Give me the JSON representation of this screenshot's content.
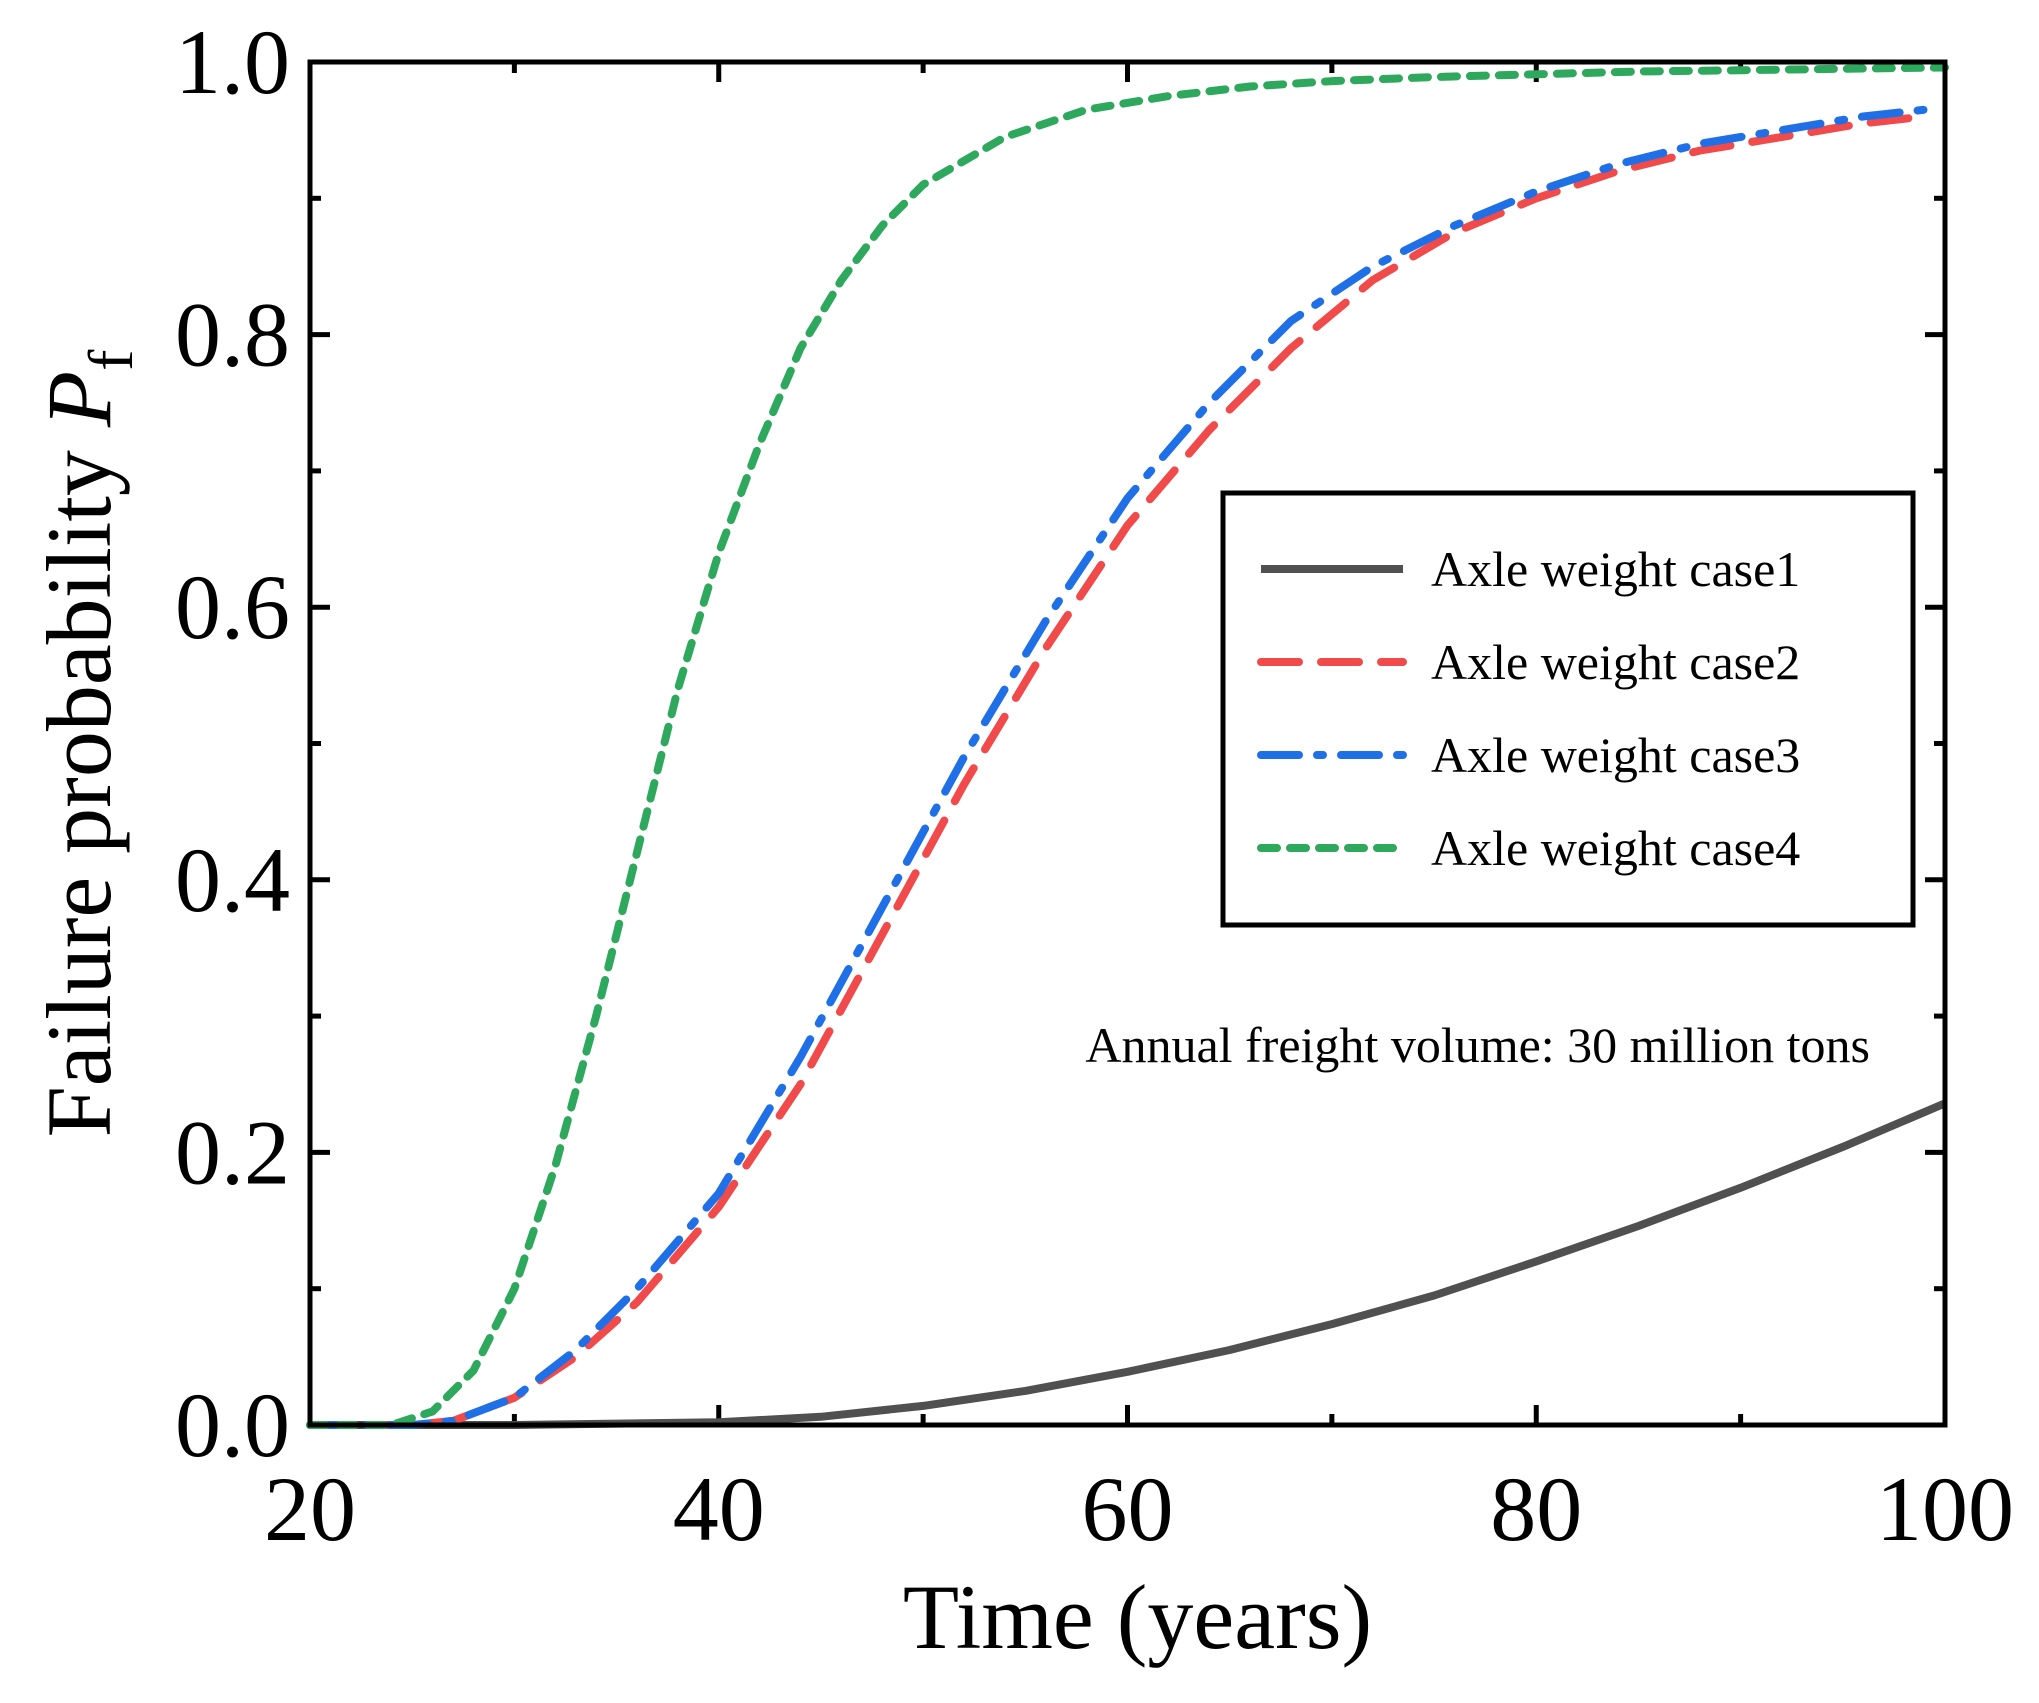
{
  "chart_data": {
    "type": "line",
    "title": "",
    "xlabel": "Time  (years)",
    "ylabel": "Failure probability ",
    "ylabel_symbol": "P",
    "ylabel_subscript": "f",
    "xlim": [
      20,
      100
    ],
    "ylim": [
      0,
      1.0
    ],
    "xticks": [
      20,
      40,
      60,
      80,
      100
    ],
    "xtick_labels": [
      "20",
      "40",
      "60",
      "80",
      "100"
    ],
    "yticks": [
      0,
      0.2,
      0.4,
      0.6,
      0.8,
      1.0
    ],
    "ytick_labels": [
      "0.0",
      "0.2",
      "0.4",
      "0.6",
      "0.8",
      "1.0"
    ],
    "grid": false,
    "legend_position": "right",
    "annotation": "Annual freight volume: 30 million tons",
    "series": [
      {
        "name": "Axle weight case1",
        "color": "#505050",
        "dash": "solid",
        "x": [
          20,
          30,
          40,
          45,
          50,
          55,
          60,
          65,
          70,
          75,
          80,
          85,
          90,
          95,
          100
        ],
        "y": [
          0,
          0,
          0.002,
          0.006,
          0.014,
          0.025,
          0.039,
          0.055,
          0.074,
          0.095,
          0.12,
          0.146,
          0.174,
          0.204,
          0.236
        ]
      },
      {
        "name": "Axle weight case2",
        "color": "#f04a4a",
        "dash": "dash",
        "x": [
          20,
          25,
          27,
          30,
          33,
          36,
          40,
          44,
          48,
          52,
          56,
          60,
          64,
          68,
          72,
          76,
          80,
          84,
          88,
          92,
          96,
          99
        ],
        "y": [
          0,
          0,
          0.003,
          0.02,
          0.05,
          0.09,
          0.16,
          0.25,
          0.36,
          0.47,
          0.57,
          0.66,
          0.73,
          0.79,
          0.84,
          0.875,
          0.9,
          0.92,
          0.935,
          0.945,
          0.955,
          0.96
        ]
      },
      {
        "name": "Axle weight case3",
        "color": "#1f6fe6",
        "dash": "dashdot",
        "x": [
          20,
          25,
          27,
          30,
          33,
          36,
          40,
          44,
          48,
          52,
          56,
          60,
          64,
          68,
          72,
          76,
          80,
          84,
          88,
          92,
          96,
          99
        ],
        "y": [
          0,
          0,
          0.003,
          0.02,
          0.055,
          0.1,
          0.17,
          0.27,
          0.38,
          0.49,
          0.59,
          0.68,
          0.75,
          0.81,
          0.85,
          0.88,
          0.905,
          0.925,
          0.94,
          0.95,
          0.96,
          0.965
        ]
      },
      {
        "name": "Axle weight case4",
        "color": "#2ea85c",
        "dash": "dot",
        "x": [
          20,
          24,
          26,
          28,
          30,
          32,
          34,
          36,
          38,
          40,
          42,
          44,
          46,
          48,
          50,
          54,
          58,
          62,
          66,
          70,
          75,
          80,
          85,
          90,
          95,
          100
        ],
        "y": [
          0,
          0,
          0.01,
          0.04,
          0.1,
          0.19,
          0.3,
          0.42,
          0.54,
          0.64,
          0.72,
          0.79,
          0.84,
          0.88,
          0.91,
          0.945,
          0.965,
          0.975,
          0.982,
          0.986,
          0.989,
          0.991,
          0.993,
          0.994,
          0.995,
          0.996
        ]
      }
    ]
  }
}
